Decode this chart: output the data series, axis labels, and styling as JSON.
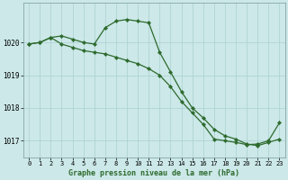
{
  "line1_x": [
    0,
    1,
    2,
    3,
    4,
    5,
    6,
    7,
    8,
    9,
    10,
    11,
    12,
    13,
    14,
    15,
    16,
    17,
    18,
    19,
    20,
    21,
    22,
    23
  ],
  "line1_y": [
    1019.95,
    1020.0,
    1020.15,
    1020.2,
    1020.1,
    1020.0,
    1019.95,
    1020.45,
    1020.65,
    1020.7,
    1020.65,
    1020.6,
    1019.7,
    1019.1,
    1018.5,
    1018.0,
    1017.7,
    1017.35,
    1017.15,
    1017.05,
    1016.9,
    1016.85,
    1016.95,
    1017.05
  ],
  "line2_x": [
    0,
    1,
    2,
    3,
    4,
    5,
    6,
    7,
    8,
    9,
    10,
    11,
    12,
    13,
    14,
    15,
    16,
    17,
    18,
    19,
    20,
    21,
    22,
    23
  ],
  "line2_y": [
    1019.95,
    1020.0,
    1020.15,
    1019.95,
    1019.85,
    1019.75,
    1019.7,
    1019.65,
    1019.55,
    1019.45,
    1019.35,
    1019.2,
    1019.0,
    1018.65,
    1018.2,
    1017.85,
    1017.5,
    1017.05,
    1017.0,
    1016.95,
    1016.88,
    1016.9,
    1017.0,
    1017.55
  ],
  "line_color": "#2d6a2d",
  "bg_color": "#cce8e8",
  "grid_color": "#aad0d0",
  "xlabel": "Graphe pression niveau de la mer (hPa)",
  "xlim": [
    -0.5,
    23.5
  ],
  "ylim": [
    1016.5,
    1021.2
  ],
  "yticks": [
    1017,
    1018,
    1019,
    1020
  ],
  "xticks": [
    0,
    1,
    2,
    3,
    4,
    5,
    6,
    7,
    8,
    9,
    10,
    11,
    12,
    13,
    14,
    15,
    16,
    17,
    18,
    19,
    20,
    21,
    22,
    23
  ],
  "marker": "D",
  "markersize": 2.2,
  "linewidth": 0.9
}
